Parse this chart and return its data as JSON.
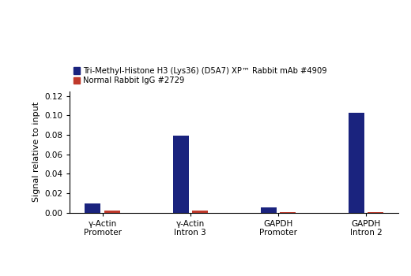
{
  "categories": [
    "γ-Actin\nPromoter",
    "γ-Actin\nIntron 3",
    "GAPDH\nPromoter",
    "GAPDH\nIntron 2"
  ],
  "blue_values": [
    0.009,
    0.079,
    0.005,
    0.103
  ],
  "red_values": [
    0.002,
    0.002,
    0.0005,
    0.0005
  ],
  "blue_color": "#1a237e",
  "red_color": "#c0392b",
  "ylabel": "Signal relative to input",
  "ylim": [
    0,
    0.125
  ],
  "yticks": [
    0,
    0.02,
    0.04,
    0.06,
    0.08,
    0.1,
    0.12
  ],
  "legend_blue": "Tri-Methyl-Histone H3 (Lys36) (D5A7) XP™ Rabbit mAb #4909",
  "legend_red": "Normal Rabbit IgG #2729",
  "bar_width": 0.18,
  "bar_gap": 0.04,
  "background_color": "#ffffff",
  "legend_fontsize": 7.2,
  "tick_fontsize": 7.5,
  "ylabel_fontsize": 8
}
